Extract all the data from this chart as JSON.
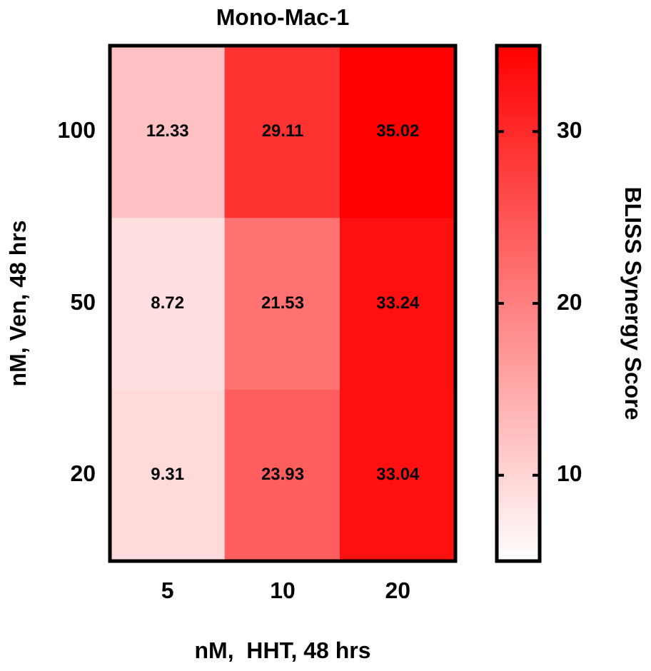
{
  "chart_data": {
    "type": "heatmap",
    "title": "Mono-Mac-1",
    "xlabel": "nM,  HHT, 48 hrs",
    "ylabel": "nM, Ven, 48 hrs",
    "clabel": "BLISS Synergy Score",
    "categories": [
      "5",
      "10",
      "20"
    ],
    "y_categories": [
      "100",
      "50",
      "20"
    ],
    "cells": [
      [
        12.33,
        29.11,
        35.02
      ],
      [
        8.72,
        21.53,
        33.24
      ],
      [
        9.31,
        23.93,
        33.04
      ]
    ],
    "clim": [
      5,
      35
    ],
    "cticks": [
      10,
      20,
      30
    ],
    "data_labels": true
  }
}
